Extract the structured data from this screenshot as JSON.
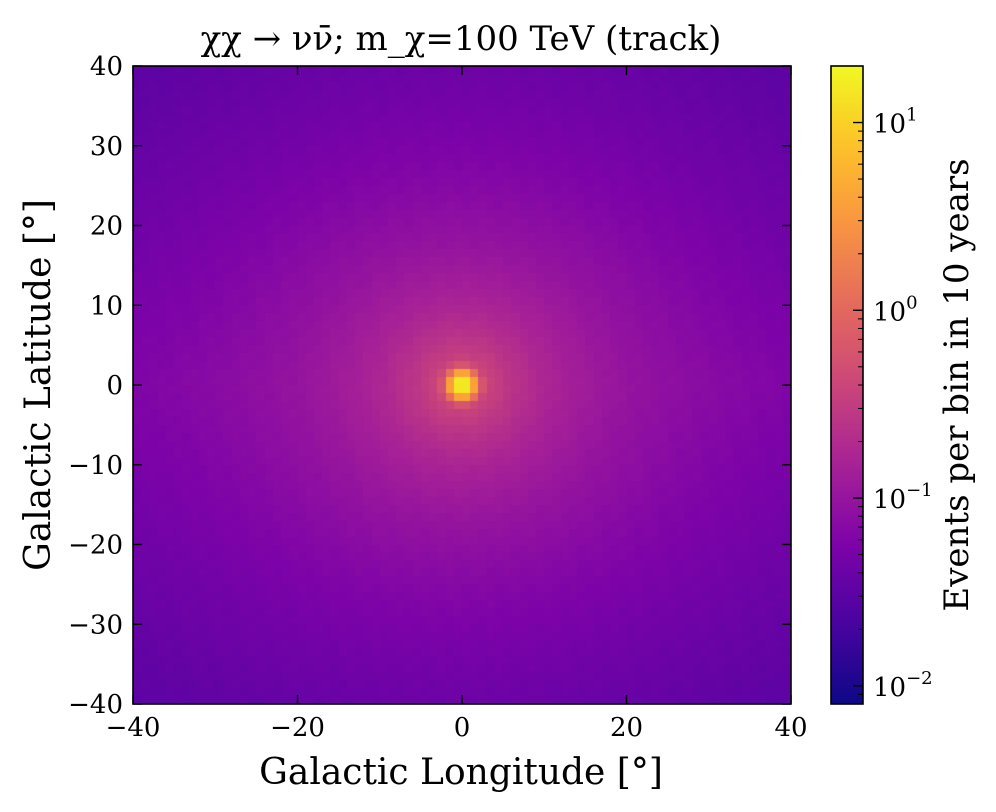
{
  "chart_data": {
    "type": "heatmap",
    "title": "χχ → νν̄; m_χ=100 TeV (track)",
    "xlabel": "Galactic Longitude [°]",
    "ylabel": "Galactic Latitude [°]",
    "xlim": [
      -40,
      40
    ],
    "ylim": [
      -40,
      40
    ],
    "xticks": [
      -40,
      -20,
      0,
      20,
      40
    ],
    "yticks": [
      -40,
      -30,
      -20,
      -10,
      0,
      10,
      20,
      30,
      40
    ],
    "xtick_labels": [
      "−40",
      "−20",
      "0",
      "20",
      "40"
    ],
    "ytick_labels": [
      "−40",
      "−30",
      "−20",
      "−10",
      "0",
      "10",
      "20",
      "30",
      "40"
    ],
    "bins": {
      "nx": 80,
      "ny": 80,
      "bin_width_deg": 1
    },
    "distribution": {
      "center": [
        0,
        0
      ],
      "peak": 20,
      "edge_min": 0.008
    },
    "colorbar": {
      "label": "Events per bin in 10 years",
      "scale": "log",
      "range": [
        0.008,
        20
      ],
      "colormap": "plasma",
      "ticks": [
        0.01,
        0.1,
        1,
        10
      ],
      "tick_labels": [
        {
          "base": "10",
          "exp": "−2"
        },
        {
          "base": "10",
          "exp": "−1"
        },
        {
          "base": "10",
          "exp": "0"
        },
        {
          "base": "10",
          "exp": "1"
        }
      ]
    }
  }
}
